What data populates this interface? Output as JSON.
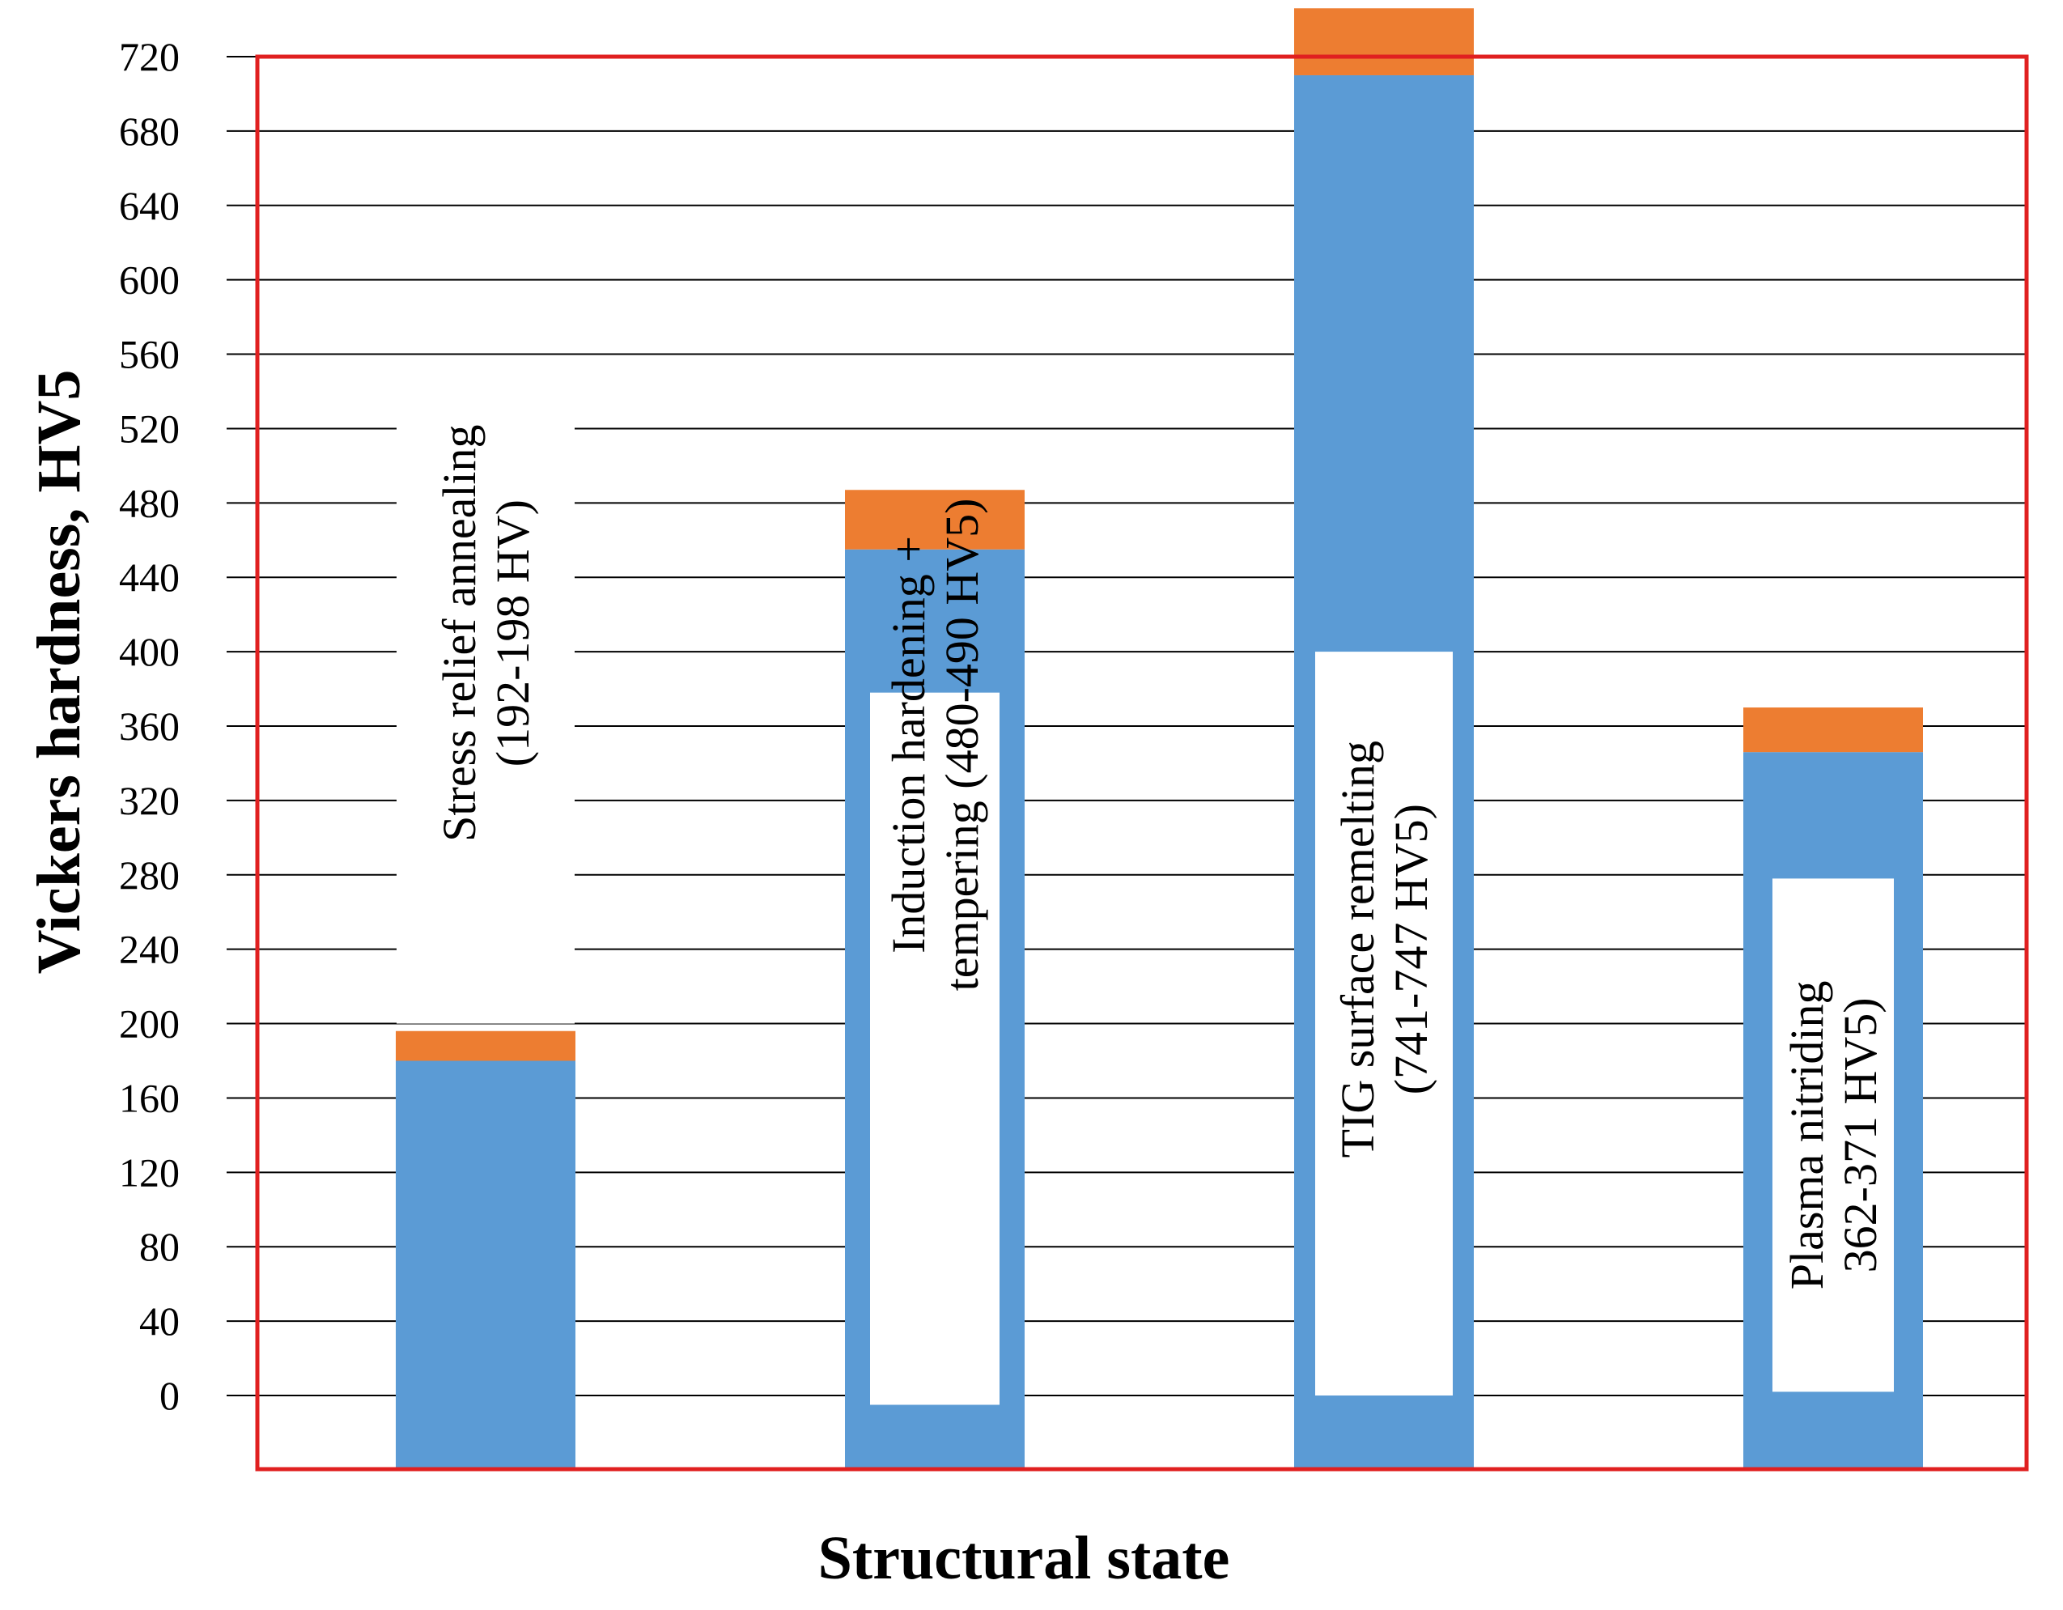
{
  "chart_data": {
    "type": "bar",
    "stacked": true,
    "xlabel": "Structural state",
    "ylabel": "Vickers hardness, HV5",
    "yticks": [
      0,
      40,
      80,
      120,
      160,
      200,
      240,
      280,
      320,
      360,
      400,
      440,
      480,
      520,
      560,
      600,
      640,
      680,
      720
    ],
    "ylim": [
      0,
      720
    ],
    "grid": true,
    "categories": [
      [
        "Stress relief annealing",
        "(192-198 HV)"
      ],
      [
        "Induction hardening +",
        "tempering (480-490 HV5)"
      ],
      [
        "TIG surface remelting",
        "(741-747 HV5)"
      ],
      [
        "Plasma nitriding",
        "362-371 HV5)"
      ]
    ],
    "series": [
      {
        "color": "#5b9bd5",
        "values": [
          180,
          455,
          710,
          346
        ]
      },
      {
        "color": "#ed7d31",
        "values": [
          16,
          32,
          36,
          24
        ]
      }
    ],
    "frame_color": "#e02020",
    "grid_color": "#000000"
  }
}
